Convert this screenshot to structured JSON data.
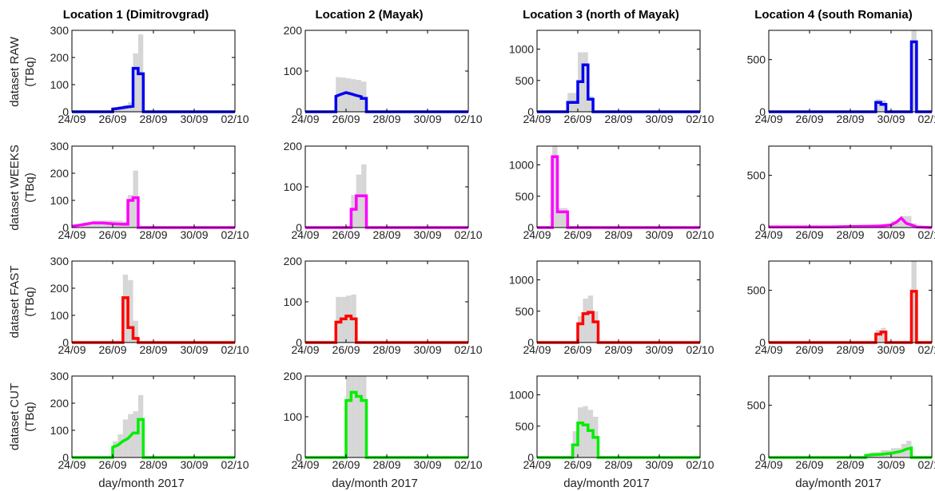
{
  "figure": {
    "column_titles": [
      "Location 1 (Dimitrovgrad)",
      "Location 2 (Mayak)",
      "Location 3 (north of Mayak)",
      "Location 4 (south Romania)"
    ],
    "row_labels": [
      "dataset RAW",
      "dataset WEEKS",
      "dataset FAST",
      "dataset CUT"
    ],
    "ylabel_unit": "(TBq)",
    "xlabel": "day/month 2017",
    "x_tick_labels": [
      "24/09",
      "26/09",
      "28/09",
      "30/09",
      "02/10"
    ],
    "row_colors": [
      "#0000ee",
      "#ff00ff",
      "#ff0000",
      "#00ee00"
    ],
    "band_color": "#d6d6d6"
  },
  "chart_data": [
    {
      "type": "line",
      "title": "Location 1 (Dimitrovgrad)",
      "row": "dataset RAW",
      "ylabel": "dataset RAW (TBq)",
      "xlim": [
        0,
        8
      ],
      "ylim": [
        0,
        300
      ],
      "yticks": [
        0,
        100,
        200,
        300
      ],
      "series": [
        {
          "color": "#0000ee",
          "x": [
            0,
            2.0,
            2.0,
            2.25,
            2.5,
            2.75,
            3.0,
            3.0,
            3.25,
            3.25,
            3.5,
            3.5,
            8
          ],
          "y": [
            0,
            0,
            10,
            12,
            15,
            18,
            20,
            160,
            160,
            140,
            140,
            0,
            0
          ]
        }
      ],
      "band": {
        "x": [
          2.0,
          2.25,
          2.5,
          2.75,
          3.0,
          3.25,
          3.5
        ],
        "y": [
          15,
          20,
          25,
          35,
          215,
          285,
          0
        ]
      }
    },
    {
      "type": "line",
      "title": "Location 2 (Mayak)",
      "row": "dataset RAW",
      "ylabel": "dataset RAW (TBq)",
      "xlim": [
        0,
        8
      ],
      "ylim": [
        0,
        200
      ],
      "yticks": [
        0,
        100,
        200
      ],
      "series": [
        {
          "color": "#0000ee",
          "x": [
            0,
            1.5,
            1.5,
            1.75,
            2.0,
            2.25,
            2.5,
            2.75,
            2.75,
            3.0,
            3.0,
            8
          ],
          "y": [
            0,
            0,
            38,
            43,
            47,
            44,
            40,
            37,
            33,
            33,
            0,
            0
          ]
        }
      ],
      "band": {
        "x": [
          1.5,
          1.75,
          2.0,
          2.25,
          2.5,
          2.75,
          3.0
        ],
        "y": [
          85,
          84,
          82,
          80,
          78,
          74,
          0
        ]
      }
    },
    {
      "type": "line",
      "title": "Location 3 (north of Mayak)",
      "row": "dataset RAW",
      "ylabel": "dataset RAW (TBq)",
      "xlim": [
        0,
        8
      ],
      "ylim": [
        0,
        1300
      ],
      "yticks": [
        0,
        500,
        1000
      ],
      "series": [
        {
          "color": "#0000ee",
          "x": [
            0,
            1.5,
            1.5,
            2.0,
            2.0,
            2.25,
            2.25,
            2.5,
            2.5,
            2.75,
            2.75,
            3.0,
            3.0,
            8
          ],
          "y": [
            0,
            0,
            150,
            150,
            480,
            480,
            750,
            750,
            200,
            200,
            0,
            0,
            0,
            0
          ]
        }
      ],
      "band": {
        "x": [
          1.5,
          2.0,
          2.25,
          2.5,
          2.75
        ],
        "y": [
          300,
          950,
          950,
          250,
          0
        ]
      }
    },
    {
      "type": "line",
      "title": "Location 4 (south Romania)",
      "row": "dataset RAW",
      "ylabel": "dataset RAW (TBq)",
      "xlim": [
        0,
        8
      ],
      "ylim": [
        0,
        780
      ],
      "yticks": [
        0,
        500
      ],
      "series": [
        {
          "color": "#0000ee",
          "x": [
            0,
            5.25,
            5.25,
            5.5,
            5.5,
            5.75,
            5.75,
            7.0,
            7.0,
            7.25,
            7.25,
            8
          ],
          "y": [
            0,
            0,
            90,
            90,
            70,
            70,
            0,
            0,
            670,
            670,
            0,
            0
          ]
        }
      ],
      "band": {
        "x": [
          5.25,
          5.5,
          5.75,
          7.0,
          7.25
        ],
        "y": [
          120,
          110,
          0,
          780,
          0
        ]
      }
    },
    {
      "type": "line",
      "title": "Location 1 (Dimitrovgrad)",
      "row": "dataset WEEKS",
      "ylabel": "dataset WEEKS (TBq)",
      "xlim": [
        0,
        8
      ],
      "ylim": [
        0,
        300
      ],
      "yticks": [
        0,
        100,
        200,
        300
      ],
      "series": [
        {
          "color": "#ff00ff",
          "x": [
            0,
            0.5,
            1.0,
            1.5,
            2.0,
            2.5,
            2.75,
            2.75,
            3.0,
            3.0,
            3.25,
            3.25,
            8
          ],
          "y": [
            5,
            10,
            17,
            17,
            14,
            12,
            12,
            100,
            100,
            110,
            110,
            0,
            0
          ]
        }
      ],
      "band": {
        "x": [
          0.5,
          1.0,
          1.5,
          2.0,
          2.5,
          2.75,
          3.0,
          3.25
        ],
        "y": [
          18,
          25,
          26,
          25,
          22,
          120,
          210,
          0
        ]
      }
    },
    {
      "type": "line",
      "title": "Location 2 (Mayak)",
      "row": "dataset WEEKS",
      "ylabel": "dataset WEEKS (TBq)",
      "xlim": [
        0,
        8
      ],
      "ylim": [
        0,
        200
      ],
      "yticks": [
        0,
        100,
        200
      ],
      "series": [
        {
          "color": "#ff00ff",
          "x": [
            0,
            2.25,
            2.25,
            2.5,
            2.5,
            3.0,
            3.0,
            8
          ],
          "y": [
            0,
            0,
            45,
            45,
            78,
            78,
            0,
            0
          ]
        }
      ],
      "band": {
        "x": [
          2.25,
          2.5,
          2.75,
          3.0
        ],
        "y": [
          80,
          130,
          155,
          0
        ]
      }
    },
    {
      "type": "line",
      "title": "Location 3 (north of Mayak)",
      "row": "dataset WEEKS",
      "ylabel": "dataset WEEKS (TBq)",
      "xlim": [
        0,
        8
      ],
      "ylim": [
        0,
        1300
      ],
      "yticks": [
        0,
        500,
        1000
      ],
      "series": [
        {
          "color": "#ff00ff",
          "x": [
            0,
            0.75,
            0.75,
            1.0,
            1.0,
            1.5,
            1.5,
            8
          ],
          "y": [
            0,
            0,
            1130,
            1130,
            250,
            250,
            0,
            0
          ]
        }
      ],
      "band": {
        "x": [
          0.75,
          1.0,
          1.5
        ],
        "y": [
          1300,
          310,
          0
        ]
      }
    },
    {
      "type": "line",
      "title": "Location 4 (south Romania)",
      "row": "dataset WEEKS",
      "ylabel": "dataset WEEKS (TBq)",
      "xlim": [
        0,
        8
      ],
      "ylim": [
        0,
        780
      ],
      "yticks": [
        0,
        500
      ],
      "series": [
        {
          "color": "#ff00ff",
          "x": [
            0,
            3.0,
            4.0,
            5.0,
            5.5,
            6.0,
            6.25,
            6.5,
            6.75,
            7.0,
            7.25,
            8
          ],
          "y": [
            5,
            5,
            10,
            12,
            15,
            25,
            50,
            90,
            40,
            25,
            5,
            0
          ]
        }
      ],
      "band": {
        "x": [
          5.5,
          6.0,
          6.5,
          7.0,
          7.25
        ],
        "y": [
          30,
          60,
          110,
          40,
          0
        ]
      }
    },
    {
      "type": "line",
      "title": "Location 1 (Dimitrovgrad)",
      "row": "dataset FAST",
      "ylabel": "dataset FAST (TBq)",
      "xlim": [
        0,
        8
      ],
      "ylim": [
        0,
        300
      ],
      "yticks": [
        0,
        100,
        200,
        300
      ],
      "series": [
        {
          "color": "#ff0000",
          "x": [
            0,
            2.5,
            2.5,
            2.75,
            2.75,
            3.0,
            3.0,
            3.25,
            3.25,
            8
          ],
          "y": [
            0,
            0,
            165,
            165,
            55,
            55,
            15,
            15,
            0,
            0
          ]
        }
      ],
      "band": {
        "x": [
          2.5,
          2.75,
          3.0,
          3.25
        ],
        "y": [
          250,
          230,
          80,
          0
        ]
      }
    },
    {
      "type": "line",
      "title": "Location 2 (Mayak)",
      "row": "dataset FAST",
      "ylabel": "dataset FAST (TBq)",
      "xlim": [
        0,
        8
      ],
      "ylim": [
        0,
        200
      ],
      "yticks": [
        0,
        100,
        200
      ],
      "series": [
        {
          "color": "#ff0000",
          "x": [
            0,
            1.5,
            1.5,
            1.75,
            1.75,
            2.0,
            2.0,
            2.25,
            2.25,
            2.5,
            2.5,
            2.75,
            2.75,
            8
          ],
          "y": [
            0,
            0,
            50,
            50,
            58,
            58,
            65,
            65,
            58,
            58,
            0,
            0,
            0,
            0
          ]
        }
      ],
      "band": {
        "x": [
          1.5,
          1.75,
          2.0,
          2.25,
          2.5
        ],
        "y": [
          112,
          112,
          115,
          118,
          0
        ]
      }
    },
    {
      "type": "line",
      "title": "Location 3 (north of Mayak)",
      "row": "dataset FAST",
      "ylabel": "dataset FAST (TBq)",
      "xlim": [
        0,
        8
      ],
      "ylim": [
        0,
        1300
      ],
      "yticks": [
        0,
        500,
        1000
      ],
      "series": [
        {
          "color": "#ff0000",
          "x": [
            0,
            2.0,
            2.0,
            2.25,
            2.25,
            2.5,
            2.5,
            2.75,
            2.75,
            3.0,
            3.0,
            8
          ],
          "y": [
            0,
            0,
            300,
            300,
            460,
            460,
            480,
            480,
            330,
            330,
            0,
            0
          ]
        }
      ],
      "band": {
        "x": [
          2.0,
          2.25,
          2.5,
          2.75,
          3.0
        ],
        "y": [
          420,
          700,
          750,
          500,
          0
        ]
      }
    },
    {
      "type": "line",
      "title": "Location 4 (south Romania)",
      "row": "dataset FAST",
      "ylabel": "dataset FAST (TBq)",
      "xlim": [
        0,
        8
      ],
      "ylim": [
        0,
        780
      ],
      "yticks": [
        0,
        500
      ],
      "series": [
        {
          "color": "#ff0000",
          "x": [
            0,
            5.25,
            5.25,
            5.5,
            5.5,
            5.75,
            5.75,
            7.0,
            7.0,
            7.25,
            7.25,
            8
          ],
          "y": [
            0,
            0,
            80,
            80,
            100,
            100,
            0,
            0,
            490,
            490,
            0,
            0
          ]
        }
      ],
      "band": {
        "x": [
          5.25,
          5.5,
          5.75,
          7.0,
          7.25
        ],
        "y": [
          120,
          140,
          0,
          780,
          0
        ]
      }
    },
    {
      "type": "line",
      "title": "Location 1 (Dimitrovgrad)",
      "row": "dataset CUT",
      "ylabel": "dataset CUT (TBq)",
      "xlim": [
        0,
        8
      ],
      "ylim": [
        0,
        300
      ],
      "yticks": [
        0,
        100,
        200,
        300
      ],
      "series": [
        {
          "color": "#00ee00",
          "x": [
            0,
            2.0,
            2.0,
            2.25,
            2.5,
            2.75,
            3.0,
            3.25,
            3.25,
            3.5,
            3.5,
            8
          ],
          "y": [
            0,
            0,
            38,
            45,
            60,
            70,
            90,
            90,
            140,
            140,
            0,
            0
          ]
        }
      ],
      "band": {
        "x": [
          2.0,
          2.25,
          2.5,
          2.75,
          3.0,
          3.25,
          3.5
        ],
        "y": [
          60,
          85,
          140,
          160,
          170,
          230,
          0
        ]
      }
    },
    {
      "type": "line",
      "title": "Location 2 (Mayak)",
      "row": "dataset CUT",
      "ylabel": "dataset CUT (TBq)",
      "xlim": [
        0,
        8
      ],
      "ylim": [
        0,
        200
      ],
      "yticks": [
        0,
        100,
        200
      ],
      "series": [
        {
          "color": "#00ee00",
          "x": [
            0,
            2.0,
            2.0,
            2.25,
            2.25,
            2.5,
            2.5,
            2.75,
            2.75,
            3.0,
            3.0,
            8
          ],
          "y": [
            0,
            0,
            140,
            140,
            160,
            160,
            150,
            150,
            140,
            140,
            0,
            0
          ]
        }
      ],
      "band": {
        "x": [
          2.0,
          2.25,
          2.5,
          2.75,
          3.0
        ],
        "y": [
          200,
          200,
          200,
          200,
          0
        ]
      }
    },
    {
      "type": "line",
      "title": "Location 3 (north of Mayak)",
      "row": "dataset CUT",
      "ylabel": "dataset CUT (TBq)",
      "xlim": [
        0,
        8
      ],
      "ylim": [
        0,
        1300
      ],
      "yticks": [
        0,
        500,
        1000
      ],
      "series": [
        {
          "color": "#00ee00",
          "x": [
            0,
            1.75,
            1.75,
            2.0,
            2.0,
            2.25,
            2.25,
            2.5,
            2.5,
            2.75,
            2.75,
            3.0,
            3.0,
            8
          ],
          "y": [
            0,
            0,
            200,
            200,
            550,
            550,
            520,
            520,
            430,
            430,
            320,
            320,
            0,
            0
          ]
        }
      ],
      "band": {
        "x": [
          1.75,
          2.0,
          2.25,
          2.5,
          2.75,
          3.0
        ],
        "y": [
          420,
          800,
          820,
          760,
          650,
          0
        ]
      }
    },
    {
      "type": "line",
      "title": "Location 4 (south Romania)",
      "row": "dataset CUT",
      "ylabel": "dataset CUT (TBq)",
      "xlim": [
        0,
        8
      ],
      "ylim": [
        0,
        780
      ],
      "yticks": [
        0,
        500
      ],
      "series": [
        {
          "color": "#00ee00",
          "x": [
            0,
            4.75,
            4.75,
            5.0,
            5.5,
            6.0,
            6.5,
            6.75,
            7.0,
            7.0,
            8
          ],
          "y": [
            0,
            0,
            20,
            25,
            30,
            40,
            60,
            80,
            90,
            0,
            0
          ]
        }
      ],
      "band": {
        "x": [
          4.75,
          5.0,
          5.5,
          6.0,
          6.5,
          6.75,
          7.0
        ],
        "y": [
          30,
          50,
          70,
          90,
          130,
          160,
          0
        ]
      }
    }
  ]
}
